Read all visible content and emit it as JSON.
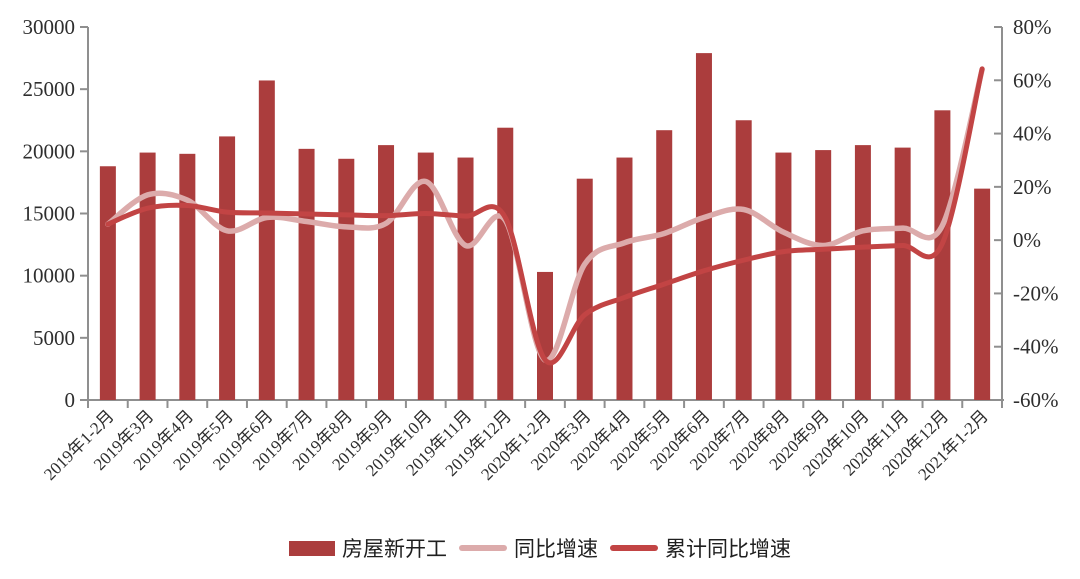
{
  "chart_data": {
    "type": "bar+line",
    "title": "",
    "xlabel": "",
    "ylabel_left": "",
    "ylabel_right": "",
    "grid": false,
    "legend_position": "bottom",
    "categories": [
      "2019年1-2月",
      "2019年3月",
      "2019年4月",
      "2019年5月",
      "2019年6月",
      "2019年7月",
      "2019年8月",
      "2019年9月",
      "2019年10月",
      "2019年11月",
      "2019年12月",
      "2020年1-2月",
      "2020年3月",
      "2020年4月",
      "2020年5月",
      "2020年6月",
      "2020年7月",
      "2020年8月",
      "2020年9月",
      "2020年10月",
      "2020年11月",
      "2020年12月",
      "2021年1-2月"
    ],
    "series": [
      {
        "name": "房屋新开工",
        "type": "bar",
        "axis": "left",
        "color": "#ab3d3d",
        "values": [
          18800,
          19900,
          19800,
          21200,
          25700,
          20200,
          19400,
          20500,
          19900,
          19500,
          21900,
          10300,
          17800,
          19500,
          21700,
          27900,
          22500,
          19900,
          20100,
          20500,
          20300,
          23300,
          17000
        ]
      },
      {
        "name": "同比增速",
        "type": "line",
        "axis": "right",
        "color": "#dcabab",
        "values": [
          6,
          17,
          15,
          3.5,
          8.5,
          7,
          5,
          6.3,
          22,
          -2,
          7.5,
          -45,
          -9,
          -1,
          2.5,
          8.5,
          11.5,
          3,
          -2,
          3.5,
          4.5,
          5.5,
          64
        ]
      },
      {
        "name": "累计同比增速",
        "type": "line",
        "axis": "right",
        "color": "#c24444",
        "values": [
          6,
          12,
          13,
          10.5,
          10.2,
          9.8,
          9.5,
          9.2,
          10,
          9,
          8.5,
          -44.9,
          -28,
          -21.5,
          -16.5,
          -11.5,
          -7.5,
          -4.3,
          -3.4,
          -2.6,
          -2,
          -1.2,
          64.3
        ]
      }
    ],
    "left_axis": {
      "min": 0,
      "max": 30000,
      "step": 5000,
      "tick_labels": [
        "0",
        "5000",
        "10000",
        "15000",
        "20000",
        "25000",
        "30000"
      ]
    },
    "right_axis": {
      "min": -60,
      "max": 80,
      "step": 20,
      "tick_labels": [
        "-60%",
        "-40%",
        "-20%",
        "0%",
        "20%",
        "40%",
        "60%",
        "80%"
      ]
    }
  },
  "style": {
    "background": "#ffffff",
    "axis_color": "#8f8f8f",
    "text_color": "#2e2e2e"
  }
}
